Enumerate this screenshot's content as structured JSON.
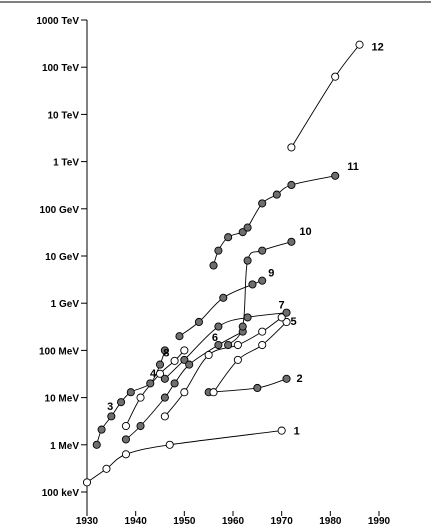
{
  "chart_data": {
    "type": "scatter",
    "title": "",
    "xlabel": "",
    "ylabel": "",
    "x_ticks": [
      1930,
      1940,
      1950,
      1960,
      1970,
      1980,
      1990
    ],
    "xlim": [
      1930,
      1990
    ],
    "y_scale": "log",
    "ylim_eV": [
      100000.0,
      1000000000000000.0
    ],
    "y_ticks": [
      {
        "value": 1000000000000000.0,
        "label": "1000 TeV"
      },
      {
        "value": 100000000000000.0,
        "label": "100 TeV"
      },
      {
        "value": 10000000000000.0,
        "label": "10 TeV"
      },
      {
        "value": 1000000000000.0,
        "label": "1 TeV"
      },
      {
        "value": 100000000000.0,
        "label": "100 GeV"
      },
      {
        "value": 10000000000.0,
        "label": "10 GeV"
      },
      {
        "value": 1000000000.0,
        "label": "1 GeV"
      },
      {
        "value": 100000000.0,
        "label": "100 MeV"
      },
      {
        "value": 10000000.0,
        "label": "10 MeV"
      },
      {
        "value": 1000000.0,
        "label": "1 MeV"
      },
      {
        "value": 100000.0,
        "label": "100 keV"
      }
    ],
    "grid": false,
    "series": [
      {
        "name": "1",
        "marker": "open-circle",
        "points": [
          [
            1930,
            160000.0
          ],
          [
            1934,
            310000.0
          ],
          [
            1938,
            630000.0
          ],
          [
            1947,
            1000000.0
          ],
          [
            1970,
            2000000.0
          ]
        ]
      },
      {
        "name": "2",
        "marker": "filled-circle",
        "points": [
          [
            1955,
            13000000.0
          ],
          [
            1965,
            16000000.0
          ],
          [
            1971,
            25000000.0
          ]
        ]
      },
      {
        "name": "3",
        "marker": "filled-circle",
        "points": [
          [
            1932,
            1000000.0
          ],
          [
            1933,
            2100000.0
          ],
          [
            1935,
            4000000.0
          ],
          [
            1937,
            8000000.0
          ],
          [
            1939,
            13000000.0
          ],
          [
            1943,
            20000000.0
          ],
          [
            1945,
            50000000.0
          ],
          [
            1946,
            100000000.0
          ]
        ]
      },
      {
        "name": "4",
        "marker": "open-circle",
        "points": [
          [
            1938,
            2500000.0
          ],
          [
            1941,
            10000000.0
          ],
          [
            1945,
            32000000.0
          ],
          [
            1948,
            60000000.0
          ],
          [
            1950,
            100000000.0
          ]
        ]
      },
      {
        "name": "5",
        "marker": "open-circle",
        "points": [
          [
            1956,
            13000000.0
          ],
          [
            1961,
            63000000.0
          ],
          [
            1966,
            130000000.0
          ],
          [
            1971,
            400000000.0
          ]
        ]
      },
      {
        "name": "6",
        "marker": "open-circle",
        "points": [
          [
            1946,
            4000000.0
          ],
          [
            1950,
            13000000.0
          ],
          [
            1955,
            80000000.0
          ],
          [
            1961,
            130000000.0
          ],
          [
            1966,
            250000000.0
          ],
          [
            1970,
            500000000.0
          ]
        ]
      },
      {
        "name": "7",
        "marker": "filled-circle",
        "points": [
          [
            1946,
            25000000.0
          ],
          [
            1950,
            63000000.0
          ],
          [
            1957,
            320000000.0
          ],
          [
            1963,
            500000000.0
          ],
          [
            1971,
            630000000.0
          ]
        ]
      },
      {
        "name": "8",
        "marker": "filled-circle",
        "points": [
          [
            1938,
            1300000.0
          ],
          [
            1941,
            2500000.0
          ],
          [
            1946,
            10000000.0
          ],
          [
            1948,
            20000000.0
          ],
          [
            1951,
            50000000.0
          ],
          [
            1957,
            130000000.0
          ],
          [
            1962,
            250000000.0
          ]
        ]
      },
      {
        "name": "9",
        "marker": "filled-circle",
        "points": [
          [
            1949,
            200000000.0
          ],
          [
            1953,
            400000000.0
          ],
          [
            1958,
            1300000000.0
          ],
          [
            1964,
            2500000000.0
          ],
          [
            1966,
            3000000000.0
          ]
        ]
      },
      {
        "name": "10",
        "marker": "filled-circle",
        "points": [
          [
            1959,
            130000000.0
          ],
          [
            1962,
            320000000.0
          ],
          [
            1963,
            8000000000.0
          ],
          [
            1966,
            13000000000.0
          ],
          [
            1972,
            20000000000.0
          ]
        ]
      },
      {
        "name": "11",
        "marker": "filled-circle",
        "points": [
          [
            1956,
            6300000000.0
          ],
          [
            1957,
            13000000000.0
          ],
          [
            1959,
            25000000000.0
          ],
          [
            1962,
            32000000000.0
          ],
          [
            1963,
            40000000000.0
          ],
          [
            1966,
            130000000000.0
          ],
          [
            1969,
            200000000000.0
          ],
          [
            1972,
            320000000000.0
          ],
          [
            1981,
            500000000000.0
          ]
        ]
      },
      {
        "name": "12",
        "marker": "open-circle",
        "points": [
          [
            1972,
            2000000000000.0
          ],
          [
            1981,
            63000000000000.0
          ],
          [
            1986,
            300000000000000.0
          ]
        ]
      }
    ]
  }
}
